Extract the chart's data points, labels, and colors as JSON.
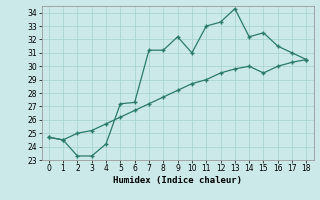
{
  "line1_x": [
    0,
    1,
    2,
    3,
    4,
    5,
    6,
    7,
    8,
    9,
    10,
    11,
    12,
    13,
    14,
    15,
    16,
    17,
    18
  ],
  "line1_y": [
    24.7,
    24.5,
    23.3,
    23.3,
    24.2,
    27.2,
    27.3,
    31.2,
    31.2,
    32.2,
    31.0,
    33.0,
    33.3,
    34.3,
    32.2,
    32.5,
    31.5,
    31.0,
    30.5
  ],
  "line2_x": [
    0,
    1,
    2,
    3,
    4,
    5,
    6,
    7,
    8,
    9,
    10,
    11,
    12,
    13,
    14,
    15,
    16,
    17,
    18
  ],
  "line2_y": [
    24.7,
    24.5,
    25.0,
    25.2,
    25.7,
    26.2,
    26.7,
    27.2,
    27.7,
    28.2,
    28.7,
    29.0,
    29.5,
    29.8,
    30.0,
    29.5,
    30.0,
    30.3,
    30.5
  ],
  "line_color": "#2a7a6a",
  "marker": "+",
  "bg_color": "#cce9e9",
  "grid_color": "#aad4d4",
  "xlabel": "Humidex (Indice chaleur)",
  "ylim": [
    23,
    34.5
  ],
  "xlim": [
    -0.5,
    18.5
  ],
  "yticks": [
    23,
    24,
    25,
    26,
    27,
    28,
    29,
    30,
    31,
    32,
    33,
    34
  ],
  "xticks": [
    0,
    1,
    2,
    3,
    4,
    5,
    6,
    7,
    8,
    9,
    10,
    11,
    12,
    13,
    14,
    15,
    16,
    17,
    18
  ]
}
